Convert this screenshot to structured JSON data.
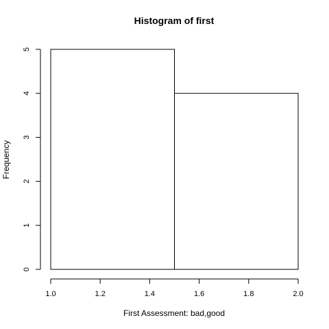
{
  "chart_data": {
    "type": "bar",
    "title": "Histogram of first",
    "xlabel": "First Assessment: bad,good",
    "ylabel": "Frequency",
    "bins": [
      {
        "x0": 1.0,
        "x1": 1.5,
        "count": 5
      },
      {
        "x0": 1.5,
        "x1": 2.0,
        "count": 4
      }
    ],
    "xlim": [
      1.0,
      2.0
    ],
    "ylim": [
      0,
      5
    ],
    "xticks": [
      "1.0",
      "1.2",
      "1.4",
      "1.6",
      "1.8",
      "2.0"
    ],
    "yticks": [
      "0",
      "1",
      "2",
      "3",
      "4",
      "5"
    ],
    "grid": false,
    "colors": {
      "bar_fill": "#ffffff",
      "bar_stroke": "#000000"
    }
  }
}
